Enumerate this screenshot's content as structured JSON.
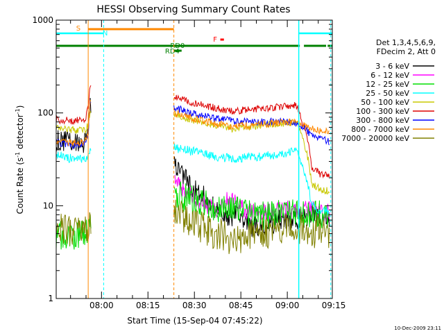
{
  "chart_data": {
    "type": "line",
    "title": "HESSI Observing Summary Count Rates",
    "xlabel": "Start Time (15-Sep-04 07:45:22)",
    "ylabel": "Count Rate (s⁻¹ detector⁻¹)",
    "ylabel_parts": {
      "base": "Count Rate (s",
      "sup1": "-1",
      "mid": " detector",
      "sup2": "-1",
      "end": ")"
    },
    "y_scale": "log",
    "ylim": [
      1,
      1000
    ],
    "xlim": [
      0,
      5350
    ],
    "y_ticks": [
      {
        "value": 1,
        "label": "1"
      },
      {
        "value": 10,
        "label": "10"
      },
      {
        "value": 100,
        "label": "100"
      },
      {
        "value": 1000,
        "label": "1000"
      }
    ],
    "x_ticks": [
      {
        "t": 878,
        "label": "08:00"
      },
      {
        "t": 1778,
        "label": "08:15"
      },
      {
        "t": 2678,
        "label": "08:30"
      },
      {
        "t": 3578,
        "label": "08:45"
      },
      {
        "t": 4478,
        "label": "09:00"
      },
      {
        "t": 5378,
        "label": "09:15"
      }
    ],
    "grid": false,
    "legend_position": "right",
    "legend_header": [
      "Det 1,3,4,5,6,9,",
      "FDecim 2, Att 0"
    ],
    "timestamp": "10-Dec-2009 23:11",
    "series": [
      {
        "name": "3 - 6 keV",
        "color": "#000000",
        "points": [
          [
            0,
            50
          ],
          [
            300,
            48
          ],
          [
            550,
            48
          ],
          [
            620,
            58
          ],
          [
            660,
            125
          ],
          [
            2280,
            28
          ],
          [
            2450,
            20
          ],
          [
            2700,
            15
          ],
          [
            2950,
            11
          ],
          [
            3150,
            8.5
          ],
          [
            3350,
            7.5
          ],
          [
            3500,
            8.5
          ],
          [
            3650,
            6.5
          ],
          [
            3800,
            6.0
          ],
          [
            4000,
            6.3
          ],
          [
            4200,
            6.6
          ],
          [
            4400,
            7.0
          ],
          [
            4650,
            6.8
          ],
          [
            4950,
            8.0
          ],
          [
            5120,
            7.5
          ],
          [
            5300,
            7.0
          ]
        ]
      },
      {
        "name": "6 - 12 keV",
        "color": "#ff00ff",
        "points": [
          [
            2300,
            18
          ],
          [
            2500,
            14
          ],
          [
            2750,
            11.5
          ],
          [
            2950,
            10
          ],
          [
            3100,
            8.5
          ],
          [
            3200,
            9.5
          ],
          [
            3300,
            12
          ],
          [
            3380,
            9.5
          ],
          [
            3450,
            13
          ],
          [
            3520,
            10
          ],
          [
            3650,
            9.0
          ],
          [
            3800,
            8.8
          ],
          [
            4000,
            8.8
          ],
          [
            4200,
            9.0
          ],
          [
            4400,
            9.2
          ],
          [
            4650,
            8.8
          ],
          [
            4950,
            9.0
          ],
          [
            5120,
            8.6
          ],
          [
            5300,
            8.5
          ]
        ]
      },
      {
        "name": "12 - 25 keV",
        "color": "#00dd00",
        "points": [
          [
            0,
            4.8
          ],
          [
            400,
            4.8
          ],
          [
            620,
            5.0
          ],
          [
            660,
            5.5
          ],
          [
            2280,
            13
          ],
          [
            2600,
            12
          ],
          [
            2900,
            10.5
          ],
          [
            3200,
            9.0
          ],
          [
            3500,
            8.6
          ],
          [
            3800,
            8.0
          ],
          [
            4100,
            8.0
          ],
          [
            4400,
            8.3
          ],
          [
            4650,
            8.0
          ],
          [
            4950,
            8.1
          ],
          [
            5120,
            8.1
          ],
          [
            5300,
            8.0
          ]
        ]
      },
      {
        "name": "25 - 50 keV",
        "color": "#00ffff",
        "points": [
          [
            0,
            35
          ],
          [
            300,
            32
          ],
          [
            550,
            32
          ],
          [
            620,
            36
          ],
          [
            660,
            40
          ],
          [
            2280,
            42
          ],
          [
            2500,
            40
          ],
          [
            2800,
            37
          ],
          [
            3100,
            34
          ],
          [
            3400,
            32
          ],
          [
            3700,
            33
          ],
          [
            4000,
            34
          ],
          [
            4300,
            36
          ],
          [
            4550,
            38
          ],
          [
            4650,
            38
          ],
          [
            4950,
            10
          ],
          [
            5120,
            9.0
          ],
          [
            5300,
            8.8
          ]
        ]
      },
      {
        "name": "50 - 100 keV",
        "color": "#c8c800",
        "points": [
          [
            0,
            70
          ],
          [
            300,
            66
          ],
          [
            550,
            64
          ],
          [
            620,
            75
          ],
          [
            660,
            100
          ],
          [
            2280,
            95
          ],
          [
            2500,
            88
          ],
          [
            2800,
            80
          ],
          [
            3100,
            73
          ],
          [
            3400,
            68
          ],
          [
            3700,
            70
          ],
          [
            4000,
            73
          ],
          [
            4300,
            77
          ],
          [
            4550,
            79
          ],
          [
            4650,
            80
          ],
          [
            4950,
            17
          ],
          [
            5120,
            15
          ],
          [
            5300,
            14.5
          ]
        ]
      },
      {
        "name": "100 - 300 keV",
        "color": "#dd0000",
        "points": [
          [
            0,
            85
          ],
          [
            300,
            82
          ],
          [
            550,
            84
          ],
          [
            620,
            110
          ],
          [
            660,
            200
          ],
          [
            2280,
            150
          ],
          [
            2500,
            138
          ],
          [
            2800,
            122
          ],
          [
            3100,
            112
          ],
          [
            3400,
            105
          ],
          [
            3700,
            108
          ],
          [
            4000,
            112
          ],
          [
            4300,
            117
          ],
          [
            4550,
            120
          ],
          [
            4650,
            120
          ],
          [
            4950,
            25
          ],
          [
            5120,
            22
          ],
          [
            5300,
            21
          ]
        ]
      },
      {
        "name": "300 - 800 keV",
        "color": "#0000ff",
        "points": [
          [
            0,
            48
          ],
          [
            300,
            45
          ],
          [
            550,
            47
          ],
          [
            620,
            58
          ],
          [
            660,
            125
          ],
          [
            2280,
            115
          ],
          [
            2500,
            104
          ],
          [
            2800,
            94
          ],
          [
            3100,
            87
          ],
          [
            3400,
            82
          ],
          [
            3700,
            80
          ],
          [
            4000,
            80
          ],
          [
            4300,
            80
          ],
          [
            4550,
            80
          ],
          [
            4650,
            79
          ],
          [
            4950,
            58
          ],
          [
            5120,
            53
          ],
          [
            5300,
            49
          ]
        ]
      },
      {
        "name": "800 - 7000 keV",
        "color": "#ff8800",
        "points": [
          [
            0,
            50
          ],
          [
            300,
            47
          ],
          [
            550,
            48
          ],
          [
            620,
            60
          ],
          [
            660,
            125
          ],
          [
            2280,
            100
          ],
          [
            2500,
            92
          ],
          [
            2800,
            83
          ],
          [
            3100,
            76
          ],
          [
            3400,
            71
          ],
          [
            3700,
            73
          ],
          [
            4000,
            75
          ],
          [
            4300,
            78
          ],
          [
            4550,
            79
          ],
          [
            4650,
            79
          ],
          [
            4950,
            68
          ],
          [
            5120,
            65
          ],
          [
            5300,
            62
          ]
        ]
      },
      {
        "name": "7000 - 20000 keV",
        "color": "#808000",
        "points": [
          [
            0,
            5.6
          ],
          [
            400,
            5.5
          ],
          [
            620,
            5.6
          ],
          [
            660,
            5.7
          ],
          [
            2280,
            9.0
          ],
          [
            2500,
            7.0
          ],
          [
            2800,
            5.8
          ],
          [
            3100,
            5.0
          ],
          [
            3400,
            4.4
          ],
          [
            3700,
            4.4
          ],
          [
            4000,
            5.0
          ],
          [
            4300,
            5.4
          ],
          [
            4650,
            5.8
          ],
          [
            4950,
            5.2
          ],
          [
            5120,
            5.3
          ],
          [
            5300,
            5.0
          ]
        ]
      }
    ],
    "annotations": [
      {
        "label": "S",
        "color": "#ff8800"
      },
      {
        "label": "N",
        "color": "#00ffff"
      },
      {
        "label": "RD0",
        "color": "#008000"
      },
      {
        "label": "RD4",
        "color": "#008000"
      },
      {
        "label": "F",
        "color": "#ff0000"
      }
    ]
  }
}
